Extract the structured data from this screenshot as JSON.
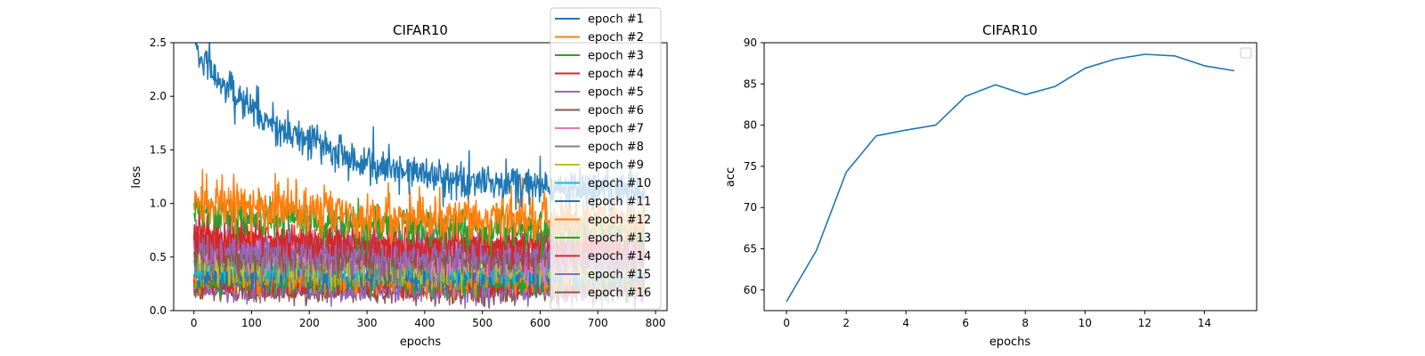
{
  "palette": [
    "#1f77b4",
    "#ff7f0e",
    "#2ca02c",
    "#d62728",
    "#9467bd",
    "#8c564b",
    "#e377c2",
    "#7f7f7f",
    "#bcbd22",
    "#17becf"
  ],
  "chart_data": [
    {
      "type": "line",
      "title": "CIFAR10",
      "xlabel": "epochs",
      "ylabel": "loss",
      "xlim": [
        -35,
        820
      ],
      "ylim": [
        0,
        2.5
      ],
      "xticks": [
        0,
        100,
        200,
        300,
        400,
        500,
        600,
        700,
        800
      ],
      "yticks": [
        0.0,
        0.5,
        1.0,
        1.5,
        2.0,
        2.5
      ],
      "grid": false,
      "legend": "top-right",
      "points_per_series": 782,
      "series": [
        {
          "name": "epoch #1",
          "start": 2.45,
          "end": 1.1,
          "noise": 0.09
        },
        {
          "name": "epoch #2",
          "start": 1.05,
          "end": 0.85,
          "noise": 0.11
        },
        {
          "name": "epoch #3",
          "start": 0.95,
          "end": 0.75,
          "noise": 0.09
        },
        {
          "name": "epoch #4",
          "start": 0.72,
          "end": 0.62,
          "noise": 0.09
        },
        {
          "name": "epoch #5",
          "start": 0.62,
          "end": 0.55,
          "noise": 0.09
        },
        {
          "name": "epoch #6",
          "start": 0.55,
          "end": 0.5,
          "noise": 0.09
        },
        {
          "name": "epoch #7",
          "start": 0.6,
          "end": 0.52,
          "noise": 0.1
        },
        {
          "name": "epoch #8",
          "start": 0.5,
          "end": 0.45,
          "noise": 0.08
        },
        {
          "name": "epoch #9",
          "start": 0.45,
          "end": 0.42,
          "noise": 0.08
        },
        {
          "name": "epoch #10",
          "start": 0.42,
          "end": 0.4,
          "noise": 0.08
        },
        {
          "name": "epoch #11",
          "start": 0.35,
          "end": 0.33,
          "noise": 0.07
        },
        {
          "name": "epoch #12",
          "start": 0.32,
          "end": 0.3,
          "noise": 0.07
        },
        {
          "name": "epoch #13",
          "start": 0.28,
          "end": 0.27,
          "noise": 0.06
        },
        {
          "name": "epoch #14",
          "start": 0.25,
          "end": 0.25,
          "noise": 0.06
        },
        {
          "name": "epoch #15",
          "start": 0.22,
          "end": 0.2,
          "noise": 0.06
        },
        {
          "name": "epoch #16",
          "start": 0.18,
          "end": 0.17,
          "noise": 0.05
        }
      ]
    },
    {
      "type": "line",
      "title": "CIFAR10",
      "xlabel": "epochs",
      "ylabel": "acc",
      "xlim": [
        -0.75,
        15.75
      ],
      "ylim": [
        57.5,
        90
      ],
      "xticks": [
        0,
        2,
        4,
        6,
        8,
        10,
        12,
        14
      ],
      "yticks": [
        60,
        65,
        70,
        75,
        80,
        85,
        90
      ],
      "grid": false,
      "legend": "top-right (empty)",
      "series": [
        {
          "x": [
            0,
            1,
            2,
            3,
            4,
            5,
            6,
            7,
            8,
            9,
            10,
            11,
            12,
            13,
            14,
            15
          ],
          "values": [
            58.6,
            64.8,
            74.3,
            78.7,
            79.4,
            80.0,
            83.5,
            84.9,
            83.7,
            84.7,
            86.9,
            88.0,
            88.6,
            88.4,
            87.2,
            86.6
          ]
        }
      ]
    }
  ]
}
